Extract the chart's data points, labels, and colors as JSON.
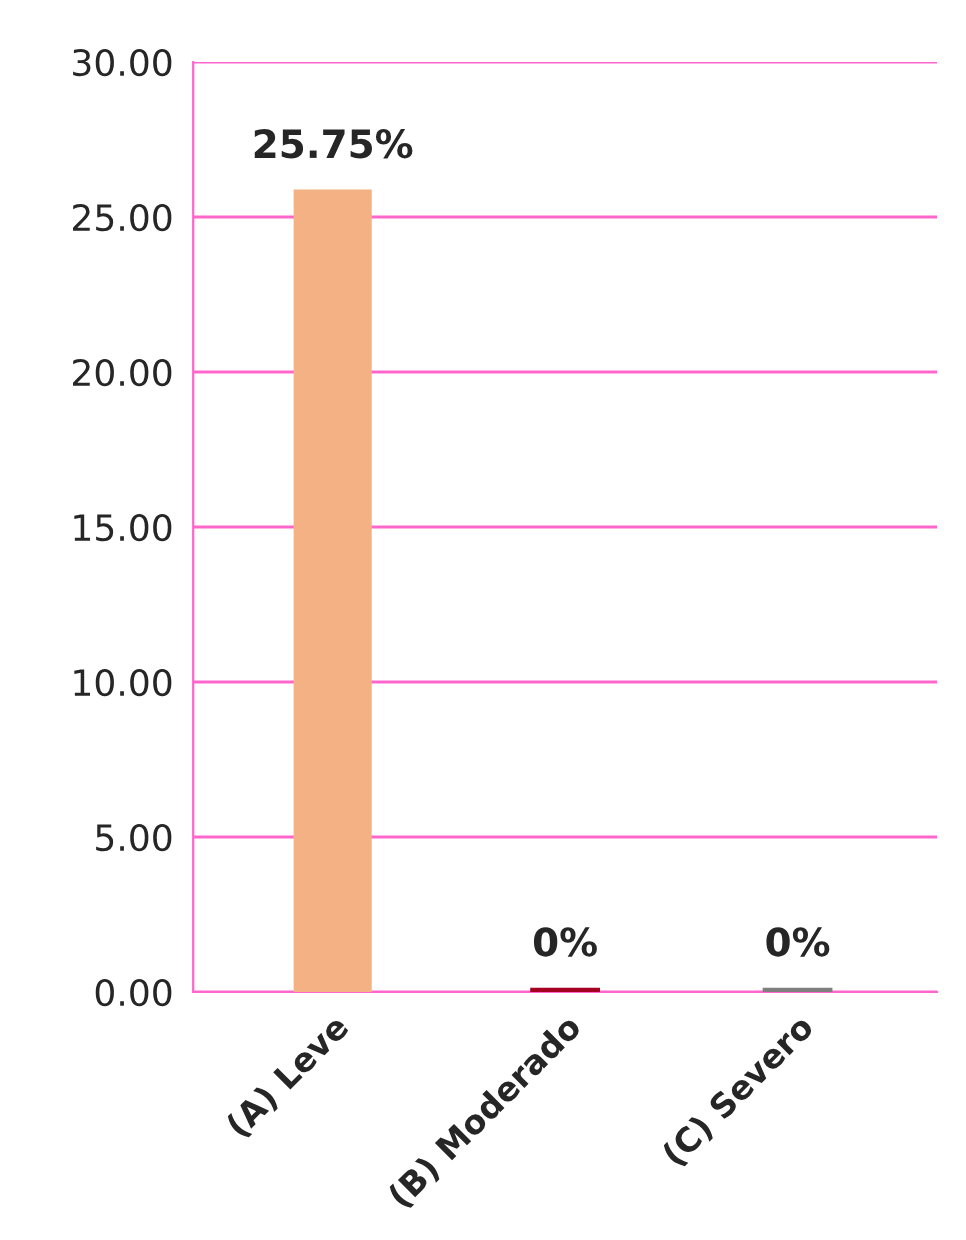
{
  "chart_data": {
    "type": "bar",
    "categories": [
      "(A) Leve",
      "(B) Moderado",
      "(C) Severo"
    ],
    "values": [
      25.75,
      0,
      0
    ],
    "colors": [
      "#f4b183",
      "#a50021",
      "#7f7f7f"
    ],
    "value_labels": [
      "25.75%",
      "0%",
      "0%"
    ],
    "ylim": [
      0,
      30
    ],
    "yticks": [
      {
        "value": 0,
        "label": "0.00"
      },
      {
        "value": 5,
        "label": "5.00"
      },
      {
        "value": 10,
        "label": "10.00"
      },
      {
        "value": 15,
        "label": "15.00"
      },
      {
        "value": 20,
        "label": "20.00"
      },
      {
        "value": 25,
        "label": "25.00"
      },
      {
        "value": 30,
        "label": "30.00"
      }
    ],
    "grid": "y"
  }
}
